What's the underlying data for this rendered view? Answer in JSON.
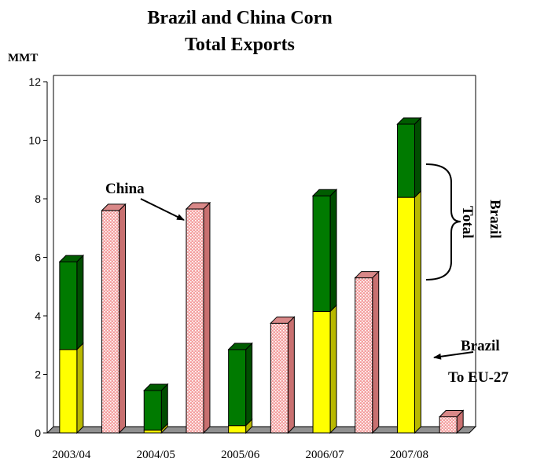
{
  "chart_data": {
    "type": "bar",
    "title_line1": "Brazil and China Corn",
    "title_line2": "Total Exports",
    "ylabel": "MMT",
    "ylim": [
      0,
      12
    ],
    "yticks": [
      0,
      2,
      4,
      6,
      8,
      10,
      12
    ],
    "x_tick_labels": [
      "2003/04",
      "2004/05",
      "2005/06",
      "2006/07",
      "2007/08"
    ],
    "bars": [
      {
        "country": "Brazil",
        "year": "2003/04",
        "eu27": 2.85,
        "total": 5.85
      },
      {
        "country": "China",
        "year": "2003/04",
        "total": 7.6
      },
      {
        "country": "Brazil",
        "year": "2004/05",
        "eu27": 0.1,
        "total": 1.45
      },
      {
        "country": "China",
        "year": "2004/05",
        "total": 7.65
      },
      {
        "country": "Brazil",
        "year": "2005/06",
        "eu27": 0.25,
        "total": 2.85
      },
      {
        "country": "China",
        "year": "2005/06",
        "total": 3.75
      },
      {
        "country": "Brazil",
        "year": "2006/07",
        "eu27": 4.15,
        "total": 8.1
      },
      {
        "country": "China",
        "year": "2006/07",
        "total": 5.3
      },
      {
        "country": "Brazil",
        "year": "2007/08",
        "eu27": 8.05,
        "total": 10.55
      },
      {
        "country": "China",
        "year": "2007/08",
        "total": 0.55
      }
    ],
    "annotations": {
      "china": "China",
      "brazil_total_line1": "Brazil",
      "brazil_total_line2": "Total",
      "brazil_eu_line1": "Brazil",
      "brazil_eu_line2": "To EU-27"
    },
    "colors": {
      "brazil_eu27": "#ffff00",
      "brazil_other": "#007a00",
      "china_fill": "#f4a0a0",
      "china_dot": "#ffffff",
      "floor": "#909090"
    },
    "grid": false
  }
}
